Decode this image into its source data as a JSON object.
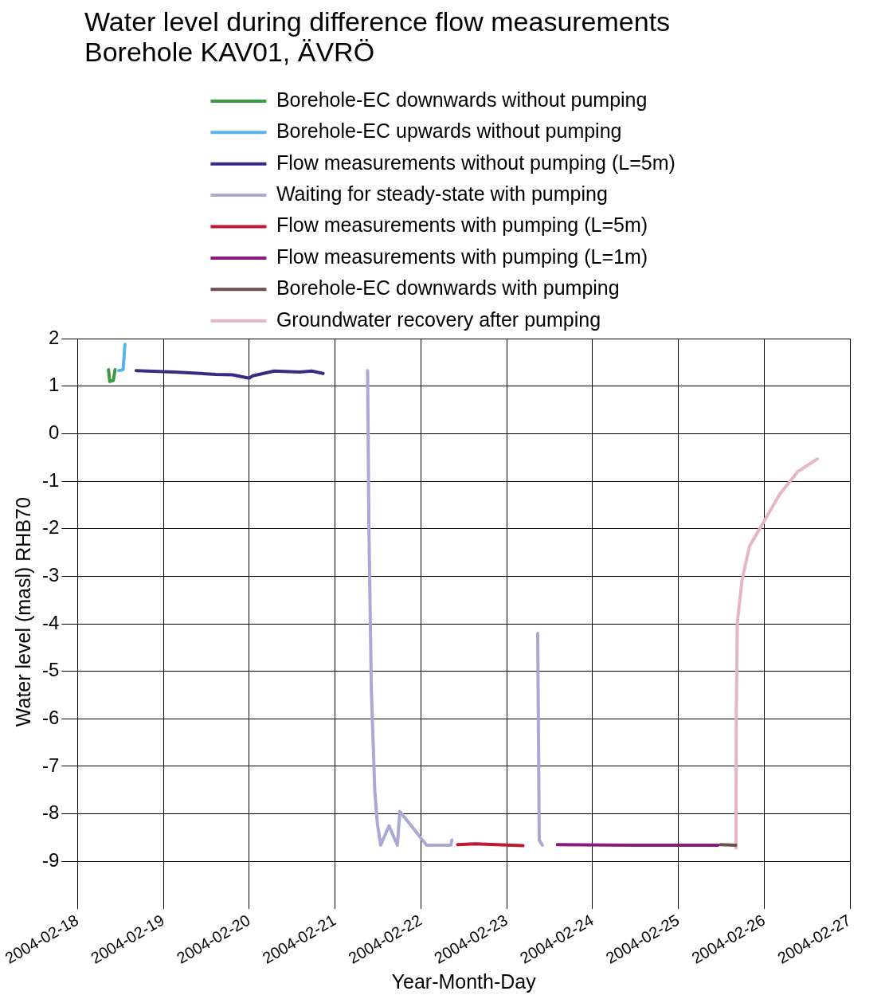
{
  "chart_data": {
    "type": "line",
    "title": "Water level during difference flow measurements",
    "subtitle": "Borehole KAV01, ÄVRÖ",
    "xlabel": "Year-Month-Day",
    "ylabel": "Water level (masl) RHB70",
    "xlim": [
      "2004-02-18",
      "2004-02-27"
    ],
    "xticks": [
      "2004-02-18",
      "2004-02-19",
      "2004-02-20",
      "2004-02-21",
      "2004-02-22",
      "2004-02-23",
      "2004-02-24",
      "2004-02-25",
      "2004-02-26",
      "2004-02-27"
    ],
    "ylim": [
      -9.5,
      2
    ],
    "yticks": [
      -9,
      -8,
      -7,
      -6,
      -5,
      -4,
      -3,
      -2,
      -1,
      0,
      1,
      2
    ],
    "grid": true,
    "legend": "top",
    "marker": "none",
    "line_style": "solid",
    "series": [
      {
        "name": "Borehole-EC downwards without pumping",
        "color": "#3a9a3f",
        "x": [
          "2004-02-18T08:40",
          "2004-02-18T09:00",
          "2004-02-18T10:00",
          "2004-02-18T10:30"
        ],
        "values": [
          1.35,
          1.1,
          1.12,
          1.35
        ]
      },
      {
        "name": "Borehole-EC upwards without pumping",
        "color": "#5ab4e8",
        "x": [
          "2004-02-18T11:30",
          "2004-02-18T12:45",
          "2004-02-18T13:15"
        ],
        "values": [
          1.33,
          1.35,
          1.88
        ]
      },
      {
        "name": "Flow measurements without pumping (L=5m)",
        "color": "#3a2a84",
        "x": [
          "2004-02-18T16:24",
          "2004-02-19T03:00",
          "2004-02-19T14:40",
          "2004-02-19T19:20",
          "2004-02-20T00:00",
          "2004-02-20T01:00",
          "2004-02-20T07:00",
          "2004-02-20T14:10",
          "2004-02-20T17:30",
          "2004-02-20T20:40"
        ],
        "values": [
          1.33,
          1.3,
          1.25,
          1.24,
          1.17,
          1.22,
          1.32,
          1.3,
          1.32,
          1.27
        ]
      },
      {
        "name": "Waiting for steady-state with pumping",
        "color": "#aaa8d4",
        "x": [
          "2004-02-21T09:07",
          "2004-02-21T09:29",
          "2004-02-21T10:10",
          "2004-02-21T11:07",
          "2004-02-21T11:50",
          "2004-02-21T12:46",
          "2004-02-21T15:06",
          "2004-02-21T17:26",
          "2004-02-21T18:08",
          "2004-02-22T00:28",
          "2004-02-22T01:38",
          "2004-02-22T08:25",
          "2004-02-22T08:40",
          "2004-02-22T20:00",
          "2004-02-23T08:41",
          "2004-02-23T09:07",
          "2004-02-23T09:58"
        ],
        "values": [
          1.33,
          -2.0,
          -5.4,
          -7.5,
          -8.2,
          -8.66,
          -8.25,
          -8.66,
          -7.95,
          -8.55,
          -8.66,
          -8.66,
          -8.55,
          null,
          -4.2,
          -8.55,
          -8.66
        ]
      },
      {
        "name": "Flow measurements with pumping (L=5m)",
        "color": "#c0182e",
        "x": [
          "2004-02-22T10:18",
          "2004-02-22T15:13",
          "2004-02-23T04:34"
        ],
        "values": [
          -8.65,
          -8.63,
          -8.67
        ]
      },
      {
        "name": "Flow measurements with pumping (L=1m)",
        "color": "#8b1a80",
        "x": [
          "2004-02-23T14:10",
          "2004-02-24T12:00",
          "2004-02-25T11:07"
        ],
        "values": [
          -8.65,
          -8.66,
          -8.66
        ]
      },
      {
        "name": "Borehole-EC downwards with pumping",
        "color": "#6b4f4a",
        "x": [
          "2004-02-25T11:50",
          "2004-02-25T16:02"
        ],
        "values": [
          -8.65,
          -8.66
        ]
      },
      {
        "name": "Groundwater recovery after pumping",
        "color": "#e5b4c6",
        "x": [
          "2004-02-25T16:08",
          "2004-02-25T16:12",
          "2004-02-25T16:30",
          "2004-02-25T17:49",
          "2004-02-25T19:54",
          "2004-02-25T23:42",
          "2004-02-26T04:19",
          "2004-02-26T09:21",
          "2004-02-26T14:53"
        ],
        "values": [
          -8.72,
          -6.0,
          -3.98,
          -3.08,
          -2.37,
          -1.88,
          -1.28,
          -0.8,
          -0.53
        ]
      }
    ]
  }
}
